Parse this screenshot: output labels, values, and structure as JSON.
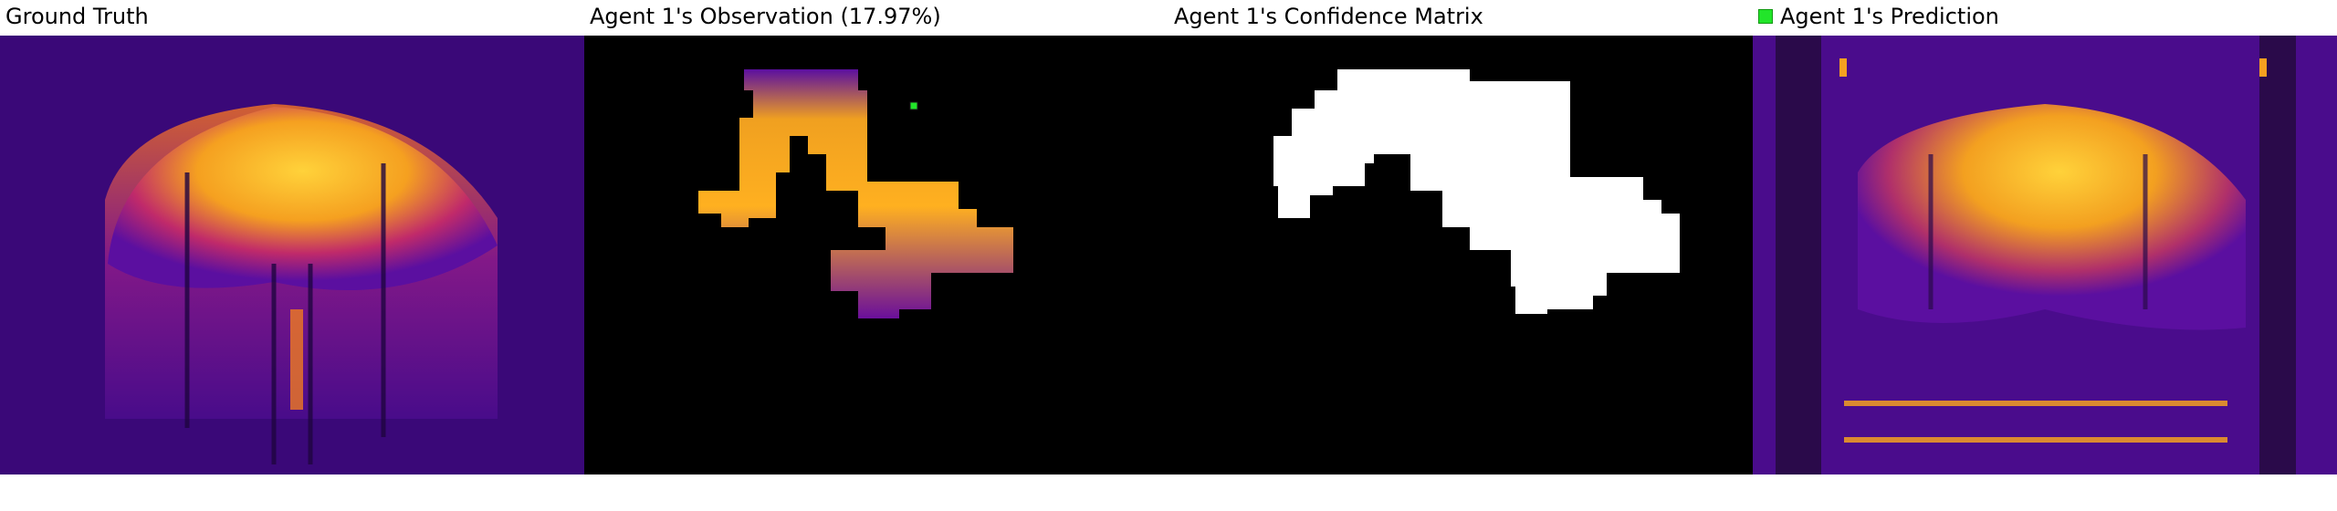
{
  "panels": [
    {
      "title": "Ground Truth"
    },
    {
      "title": "Agent 1's Observation (17.97%)"
    },
    {
      "title": "Agent 1's Confidence Matrix"
    },
    {
      "title": "Agent 1's Prediction",
      "legend_marker": "green-square"
    }
  ],
  "colors": {
    "bg_dark_purple": "#3a0878",
    "bg_mid_purple": "#5b0fa0",
    "heat_orange": "#f0a020",
    "heat_yellow": "#ffd23a",
    "mask_black": "#000000",
    "mask_white": "#ffffff",
    "marker_green": "#22e52a"
  }
}
